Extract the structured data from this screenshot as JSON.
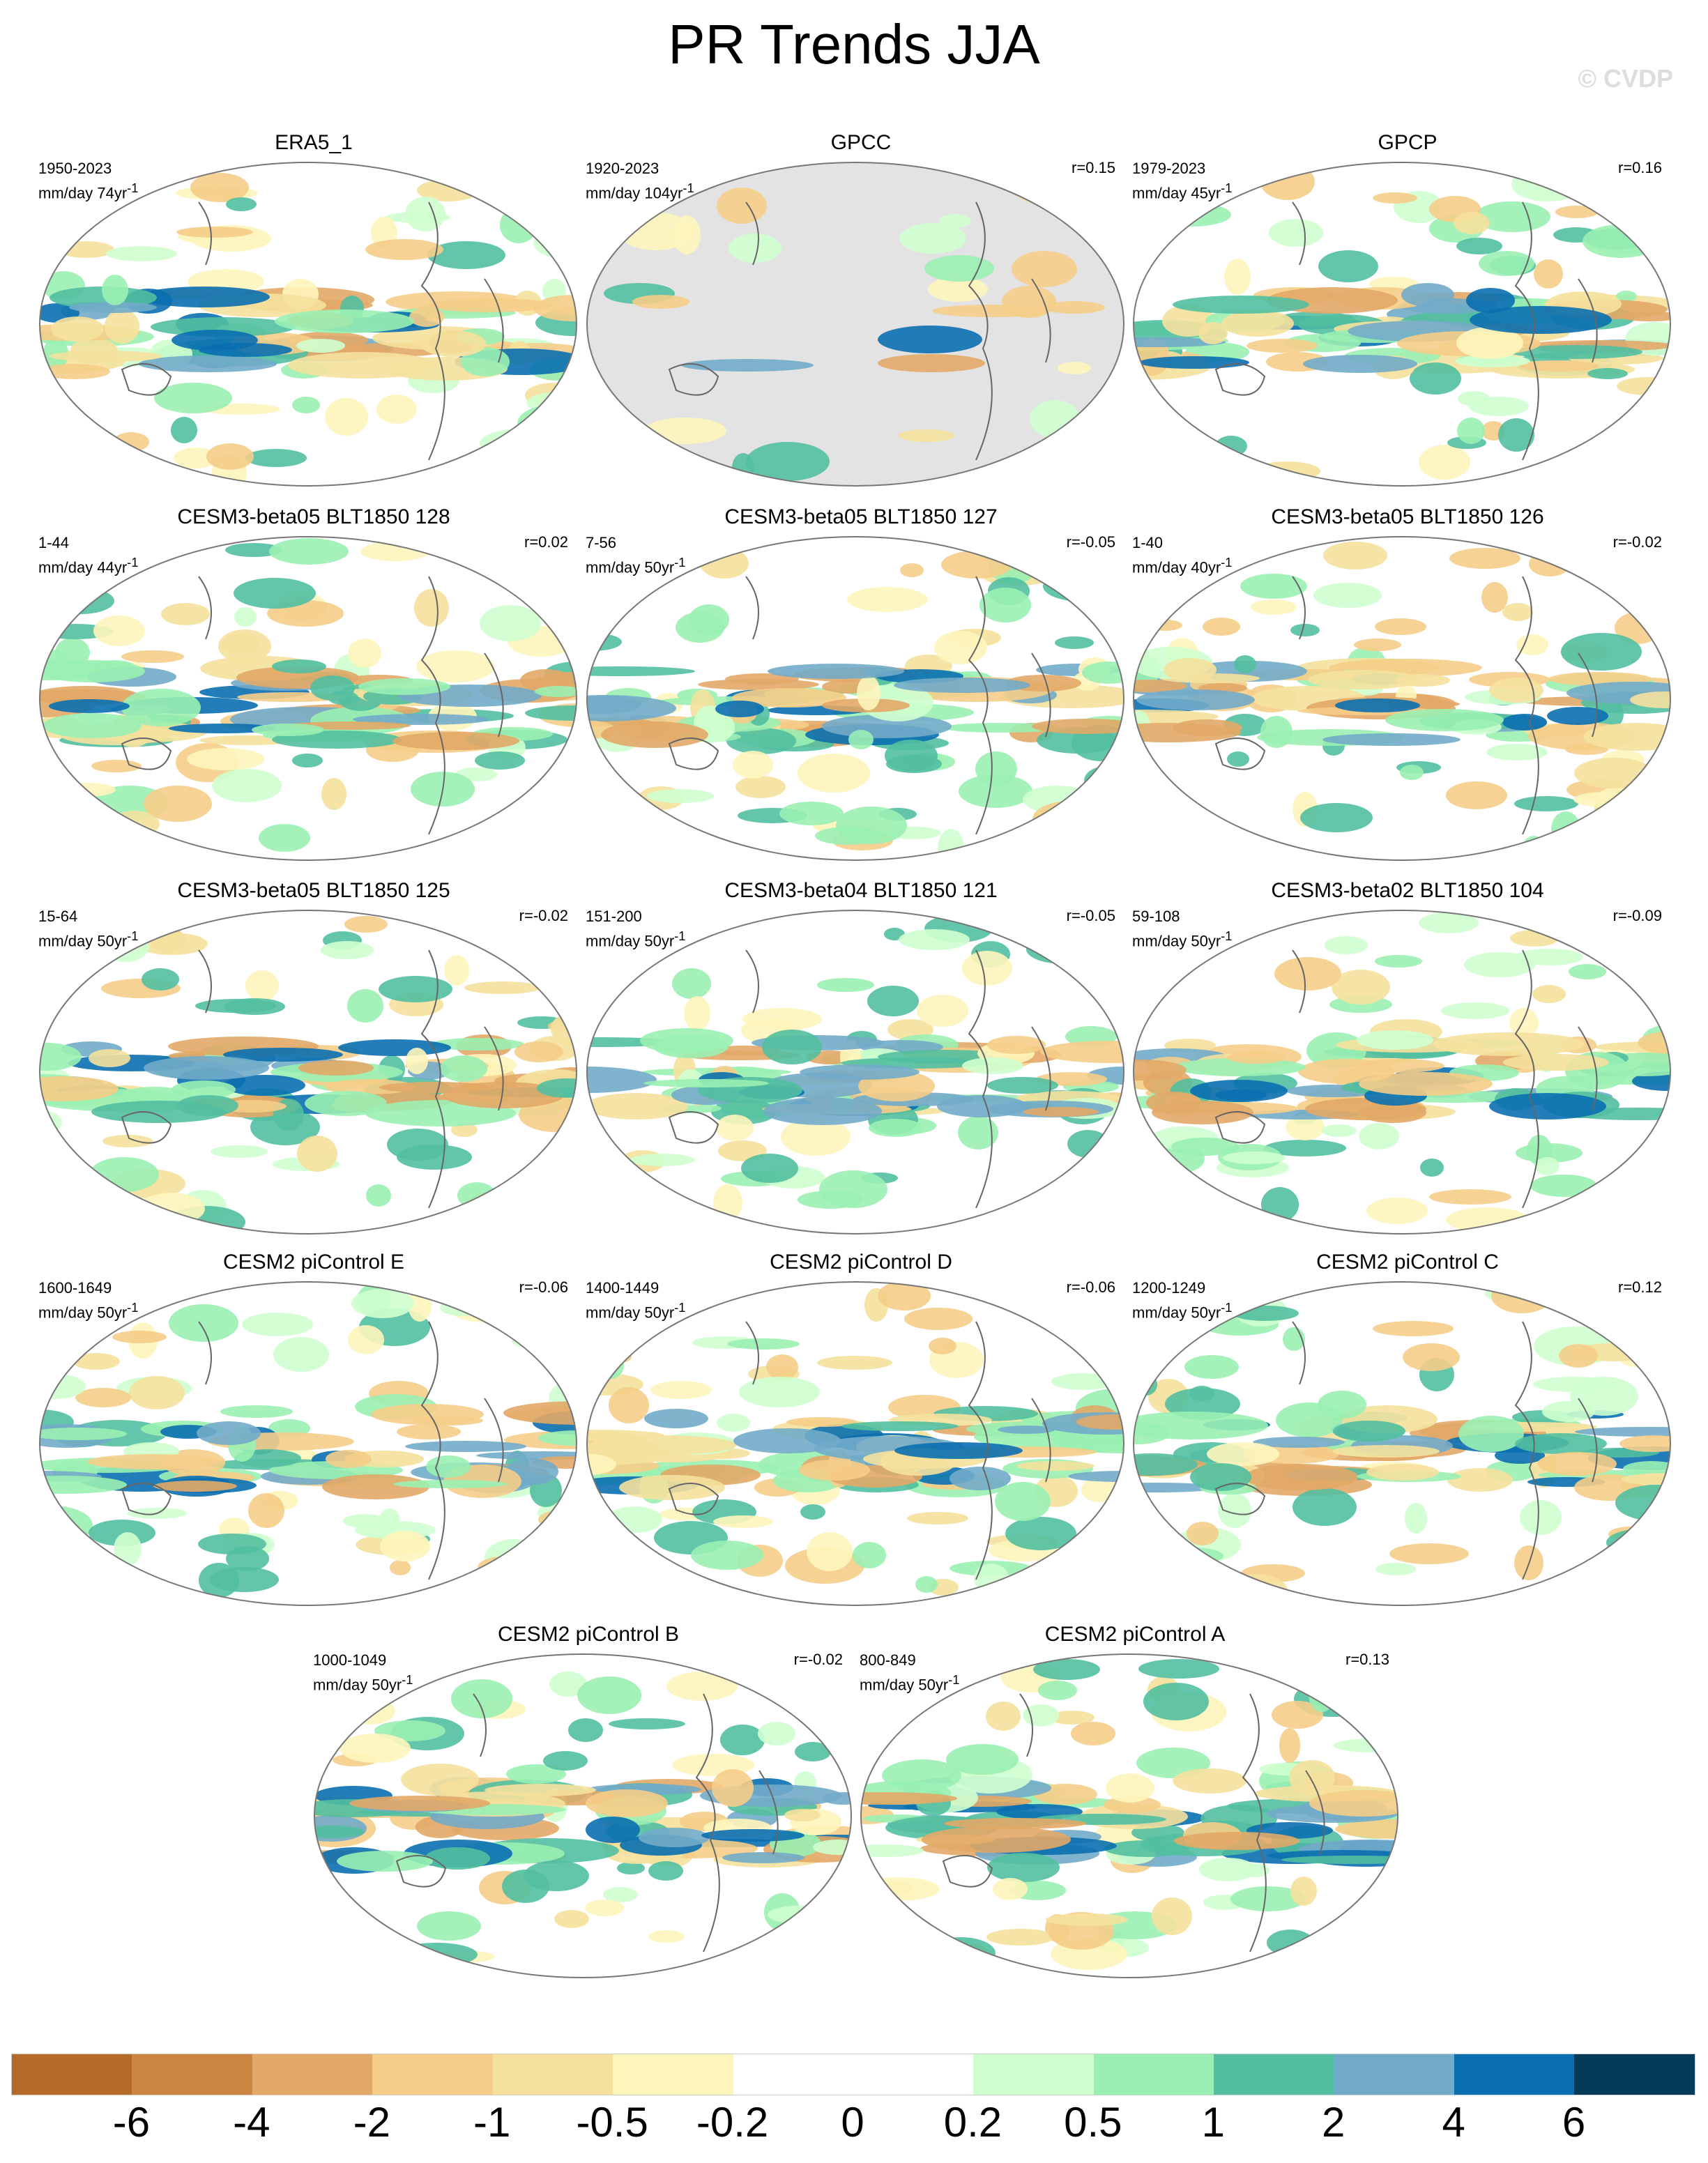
{
  "title": "PR Trends JJA",
  "watermark": "© CVDP",
  "panels": [
    {
      "title": "ERA5_1",
      "period": "1950-2023",
      "units": "mm/day 74yr",
      "r": "",
      "land_mask": false
    },
    {
      "title": "GPCC",
      "period": "1920-2023",
      "units": "mm/day 104yr",
      "r": "r=0.15",
      "land_mask": true
    },
    {
      "title": "GPCP",
      "period": "1979-2023",
      "units": "mm/day 45yr",
      "r": "r=0.16",
      "land_mask": false
    },
    {
      "title": "CESM3-beta05 BLT1850 128",
      "period": "1-44",
      "units": "mm/day 44yr",
      "r": "r=0.02",
      "land_mask": false
    },
    {
      "title": "CESM3-beta05 BLT1850 127",
      "period": "7-56",
      "units": "mm/day 50yr",
      "r": "r=-0.05",
      "land_mask": false
    },
    {
      "title": "CESM3-beta05 BLT1850 126",
      "period": "1-40",
      "units": "mm/day 40yr",
      "r": "r=-0.02",
      "land_mask": false
    },
    {
      "title": "CESM3-beta05 BLT1850 125",
      "period": "15-64",
      "units": "mm/day 50yr",
      "r": "r=-0.02",
      "land_mask": false
    },
    {
      "title": "CESM3-beta04 BLT1850 121",
      "period": "151-200",
      "units": "mm/day 50yr",
      "r": "r=-0.05",
      "land_mask": false
    },
    {
      "title": "CESM3-beta02 BLT1850 104",
      "period": "59-108",
      "units": "mm/day 50yr",
      "r": "r=-0.09",
      "land_mask": false
    },
    {
      "title": "CESM2 piControl E",
      "period": "1600-1649",
      "units": "mm/day 50yr",
      "r": "r=-0.06",
      "land_mask": false
    },
    {
      "title": "CESM2 piControl D",
      "period": "1400-1449",
      "units": "mm/day 50yr",
      "r": "r=-0.06",
      "land_mask": false
    },
    {
      "title": "CESM2 piControl C",
      "period": "1200-1249",
      "units": "mm/day 50yr",
      "r": "r=0.12",
      "land_mask": false
    },
    {
      "title": "CESM2 piControl B",
      "period": "1000-1049",
      "units": "mm/day 50yr",
      "r": "r=-0.02",
      "land_mask": false
    },
    {
      "title": "CESM2 piControl A",
      "period": "800-849",
      "units": "mm/day 50yr",
      "r": "r=0.13",
      "land_mask": false
    }
  ],
  "chart_data": {
    "type": "heatmap",
    "title": "PR Trends JJA",
    "projection": "robinson",
    "colorbar": {
      "ticks": [
        "-6",
        "-4",
        "-2",
        "-1",
        "-0.5",
        "-0.2",
        "0",
        "0.2",
        "0.5",
        "1",
        "2",
        "4",
        "6"
      ],
      "colors": [
        "#b56b28",
        "#cd8642",
        "#e2a867",
        "#f5cd88",
        "#f5e19d",
        "#fef5bb",
        "#ffffff",
        "#ffffff",
        "#cfffcf",
        "#9af0b3",
        "#52bfa0",
        "#72abc9",
        "#0a6fb0",
        "#053a5a"
      ],
      "placement": "bottom"
    }
  }
}
